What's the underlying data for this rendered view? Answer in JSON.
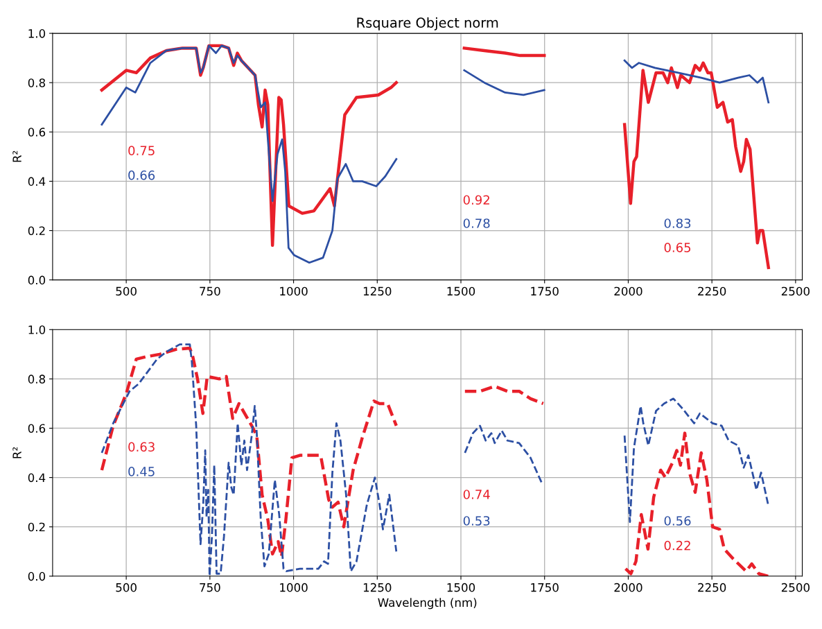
{
  "chart_data": [
    {
      "type": "line",
      "title": "Rsquare Object norm",
      "ylabel": "R²",
      "line_style": "solid",
      "grid": true,
      "xlim": [
        280,
        2520
      ],
      "xticks": [
        500,
        750,
        1000,
        1250,
        1500,
        1750,
        2000,
        2250,
        2500
      ],
      "ylim": [
        0,
        1
      ],
      "yticks": [
        {
          "value": 0,
          "label": "0.0"
        },
        {
          "value": 0.2,
          "label": "0.2"
        },
        {
          "value": 0.4,
          "label": "0.4"
        },
        {
          "value": 0.6,
          "label": "0.6"
        },
        {
          "value": 0.8,
          "label": "0.8"
        },
        {
          "value": 1,
          "label": "1.0"
        }
      ],
      "series": [
        {
          "color": "#e8202a",
          "x": [
            427,
            500,
            530,
            572,
            620,
            668,
            709,
            722,
            730,
            747,
            764,
            785,
            806,
            821,
            832,
            844,
            885,
            895,
            906,
            915,
            923,
            937,
            956,
            963,
            970,
            986,
            1026,
            1061,
            1109,
            1122,
            1153,
            1188,
            1253,
            1291,
            1307,
            1400,
            1510,
            1570,
            1632,
            1677,
            1749,
            1870,
            1989,
            2007,
            2017,
            2025,
            2044,
            2060,
            2083,
            2104,
            2118,
            2129,
            2147,
            2157,
            2183,
            2200,
            2214,
            2224,
            2238,
            2248,
            2266,
            2283,
            2297,
            2311,
            2321,
            2336,
            2345,
            2353,
            2364,
            2386,
            2393,
            2402,
            2419
          ],
          "values": [
            0.77,
            0.85,
            0.84,
            0.9,
            0.93,
            0.94,
            0.94,
            0.83,
            0.86,
            0.95,
            0.95,
            0.95,
            0.94,
            0.87,
            0.92,
            0.89,
            0.83,
            0.71,
            0.62,
            0.77,
            0.71,
            0.14,
            0.74,
            0.73,
            0.63,
            0.3,
            0.27,
            0.28,
            0.37,
            0.3,
            0.67,
            0.74,
            0.75,
            0.78,
            0.8,
            null,
            0.94,
            0.93,
            0.92,
            0.91,
            0.91,
            null,
            0.63,
            0.31,
            0.48,
            0.5,
            0.85,
            0.72,
            0.84,
            0.84,
            0.8,
            0.86,
            0.78,
            0.83,
            0.8,
            0.87,
            0.85,
            0.88,
            0.84,
            0.84,
            0.7,
            0.72,
            0.64,
            0.65,
            0.54,
            0.44,
            0.48,
            0.57,
            0.53,
            0.15,
            0.2,
            0.2,
            0.05
          ]
        },
        {
          "color": "#2c4fa3",
          "x": [
            427,
            500,
            527,
            572,
            620,
            668,
            709,
            722,
            730,
            747,
            768,
            785,
            806,
            821,
            832,
            844,
            885,
            902,
            915,
            937,
            952,
            966,
            975,
            985,
            1002,
            1047,
            1088,
            1116,
            1131,
            1156,
            1178,
            1205,
            1247,
            1274,
            1307,
            1400,
            1510,
            1570,
            1632,
            1687,
            1749,
            1870,
            1989,
            2011,
            2032,
            2080,
            2149,
            2218,
            2273,
            2328,
            2362,
            2386,
            2402,
            2419
          ],
          "values": [
            0.63,
            0.78,
            0.76,
            0.88,
            0.93,
            0.94,
            0.94,
            0.84,
            0.86,
            0.95,
            0.92,
            0.95,
            0.94,
            0.88,
            0.91,
            0.89,
            0.83,
            0.7,
            0.72,
            0.32,
            0.51,
            0.57,
            0.44,
            0.13,
            0.1,
            0.07,
            0.09,
            0.2,
            0.41,
            0.47,
            0.4,
            0.4,
            0.38,
            0.42,
            0.49,
            null,
            0.85,
            0.8,
            0.76,
            0.75,
            0.77,
            null,
            0.89,
            0.86,
            0.88,
            0.86,
            0.84,
            0.82,
            0.8,
            0.82,
            0.83,
            0.8,
            0.82,
            0.72
          ]
        }
      ],
      "annotations": [
        "0.75",
        "0.66",
        "0.92",
        "0.78",
        "0.83",
        "0.65"
      ]
    },
    {
      "type": "line",
      "xlabel": "Wavelength (nm)",
      "ylabel": "R²",
      "line_style": "dashed",
      "grid": true,
      "xlim": [
        280,
        2520
      ],
      "xticks": [
        500,
        750,
        1000,
        1250,
        1500,
        1750,
        2000,
        2250,
        2500
      ],
      "ylim": [
        0,
        1
      ],
      "yticks": [
        {
          "value": 0,
          "label": "0.0"
        },
        {
          "value": 0.2,
          "label": "0.2"
        },
        {
          "value": 0.4,
          "label": "0.4"
        },
        {
          "value": 0.6,
          "label": "0.6"
        },
        {
          "value": 0.8,
          "label": "0.8"
        },
        {
          "value": 1,
          "label": "1.0"
        }
      ],
      "series": [
        {
          "color": "#e8202a",
          "x": [
            427,
            461,
            500,
            530,
            560,
            600,
            650,
            690,
            699,
            713,
            729,
            742,
            778,
            799,
            818,
            837,
            875,
            890,
            906,
            923,
            937,
            954,
            964,
            977,
            995,
            1019,
            1054,
            1081,
            1105,
            1116,
            1133,
            1150,
            1178,
            1205,
            1240,
            1257,
            1281,
            1307,
            1400,
            1512,
            1557,
            1601,
            1639,
            1674,
            1708,
            1746,
            1870,
            1992,
            2008,
            2023,
            2039,
            2059,
            2076,
            2097,
            2111,
            2132,
            2145,
            2156,
            2169,
            2183,
            2200,
            2218,
            2235,
            2252,
            2273,
            2287,
            2314,
            2352,
            2369,
            2390,
            2418
          ],
          "values": [
            0.43,
            0.61,
            0.74,
            0.88,
            0.89,
            0.9,
            0.92,
            0.925,
            0.89,
            0.8,
            0.66,
            0.81,
            0.8,
            0.81,
            0.64,
            0.7,
            0.61,
            0.57,
            0.33,
            0.23,
            0.09,
            0.14,
            0.08,
            0.23,
            0.48,
            0.49,
            0.49,
            0.49,
            0.31,
            0.28,
            0.3,
            0.2,
            0.43,
            0.56,
            0.71,
            0.7,
            0.7,
            0.61,
            null,
            0.75,
            0.75,
            0.77,
            0.75,
            0.75,
            0.72,
            0.7,
            null,
            0.03,
            0.01,
            0.06,
            0.25,
            0.11,
            0.32,
            0.43,
            0.4,
            0.46,
            0.51,
            0.45,
            0.58,
            0.42,
            0.34,
            0.5,
            0.39,
            0.2,
            0.19,
            0.11,
            0.07,
            0.02,
            0.05,
            0.01,
            0.0
          ]
        },
        {
          "color": "#2c4fa3",
          "x": [
            427,
            461,
            510,
            537,
            592,
            620,
            660,
            690,
            696,
            709,
            722,
            730,
            736,
            740,
            745,
            749,
            756,
            763,
            770,
            782,
            792,
            806,
            814,
            821,
            833,
            844,
            853,
            861,
            875,
            884,
            890,
            902,
            913,
            926,
            944,
            957,
            970,
            978,
            1019,
            1074,
            1091,
            1103,
            1116,
            1128,
            1140,
            1157,
            1171,
            1188,
            1219,
            1243,
            1257,
            1267,
            1278,
            1286,
            1307,
            1400,
            1512,
            1536,
            1557,
            1574,
            1591,
            1601,
            1622,
            1639,
            1674,
            1708,
            1741,
            1870,
            1989,
            2005,
            2017,
            2037,
            2045,
            2060,
            2083,
            2107,
            2135,
            2162,
            2197,
            2214,
            2252,
            2279,
            2300,
            2328,
            2345,
            2359,
            2383,
            2397,
            2418
          ],
          "values": [
            0.5,
            0.62,
            0.75,
            0.78,
            0.88,
            0.91,
            0.94,
            0.94,
            0.87,
            0.61,
            0.13,
            0.29,
            0.51,
            0.24,
            0.35,
            0.0,
            0.16,
            0.45,
            0.01,
            0.01,
            0.16,
            0.46,
            0.36,
            0.33,
            0.62,
            0.45,
            0.55,
            0.43,
            0.57,
            0.69,
            0.58,
            0.23,
            0.04,
            0.09,
            0.39,
            0.25,
            0.03,
            0.02,
            0.03,
            0.03,
            0.06,
            0.05,
            0.42,
            0.62,
            0.55,
            0.33,
            0.02,
            0.06,
            0.29,
            0.4,
            0.29,
            0.19,
            0.27,
            0.33,
            0.1,
            null,
            0.5,
            0.58,
            0.61,
            0.55,
            0.58,
            0.54,
            0.59,
            0.55,
            0.54,
            0.48,
            0.38,
            null,
            0.57,
            0.22,
            0.52,
            0.69,
            0.62,
            0.53,
            0.67,
            0.7,
            0.72,
            0.68,
            0.62,
            0.66,
            0.62,
            0.61,
            0.55,
            0.53,
            0.44,
            0.49,
            0.35,
            0.42,
            0.29
          ]
        }
      ],
      "annotations": [
        "0.63",
        "0.45",
        "0.74",
        "0.53",
        "0.56",
        "0.22"
      ]
    }
  ]
}
